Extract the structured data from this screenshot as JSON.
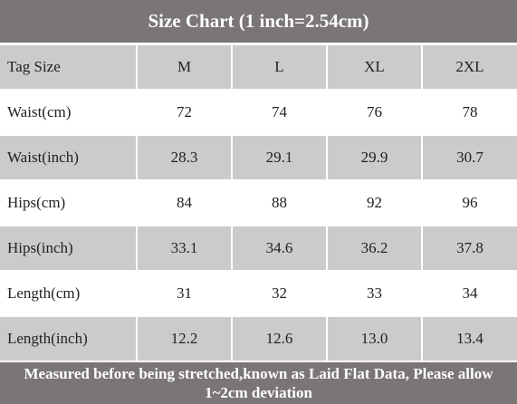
{
  "title": "Size Chart (1 inch=2.54cm)",
  "table": {
    "header": [
      "Tag Size",
      "M",
      "L",
      "XL",
      "2XL"
    ],
    "rows": [
      [
        "Waist(cm)",
        "72",
        "74",
        "76",
        "78"
      ],
      [
        "Waist(inch)",
        "28.3",
        "29.1",
        "29.9",
        "30.7"
      ],
      [
        "Hips(cm)",
        "84",
        "88",
        "92",
        "96"
      ],
      [
        "Hips(inch)",
        "33.1",
        "34.6",
        "36.2",
        "37.8"
      ],
      [
        "Length(cm)",
        "31",
        "32",
        "33",
        "34"
      ],
      [
        "Length(inch)",
        "12.2",
        "12.6",
        "13.0",
        "13.4"
      ]
    ]
  },
  "footer": "Measured before being stretched,known as Laid Flat Data, Please allow 1~2cm deviation"
}
